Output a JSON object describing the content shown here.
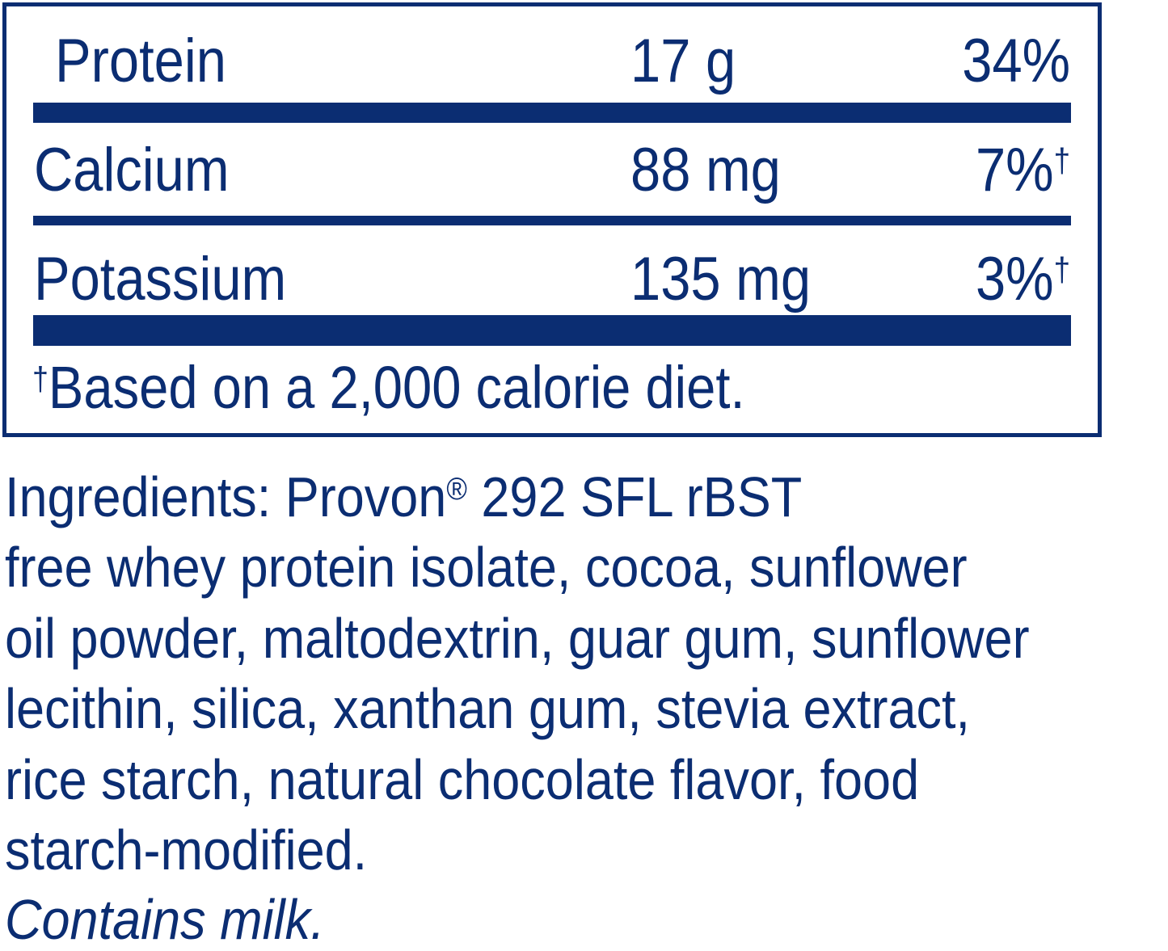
{
  "nutrients": [
    {
      "name": "Protein",
      "amount": "17 g",
      "dv": "34%",
      "mark": ""
    },
    {
      "name": "Calcium",
      "amount": "88 mg",
      "dv": "7%",
      "mark": "†"
    },
    {
      "name": "Potassium",
      "amount": "135 mg",
      "dv": "3%",
      "mark": "†"
    }
  ],
  "footnote": {
    "mark": "†",
    "text": "Based on a 2,000 calorie diet."
  },
  "ingredients": {
    "lines": [
      "Ingredients: Provon",
      "free whey protein isolate, cocoa, sunflower",
      "oil powder, maltodextrin, guar gum, sunflower",
      "lecithin, silica, xanthan gum, stevia extract,",
      "rice starch, natural chocolate flavor, food",
      "starch-modified."
    ],
    "registered": "®",
    "line1_rest": " 292 SFL rBST",
    "allergen": "Contains milk."
  },
  "colors": {
    "text": "#0b2d72",
    "background": "#ffffff"
  }
}
